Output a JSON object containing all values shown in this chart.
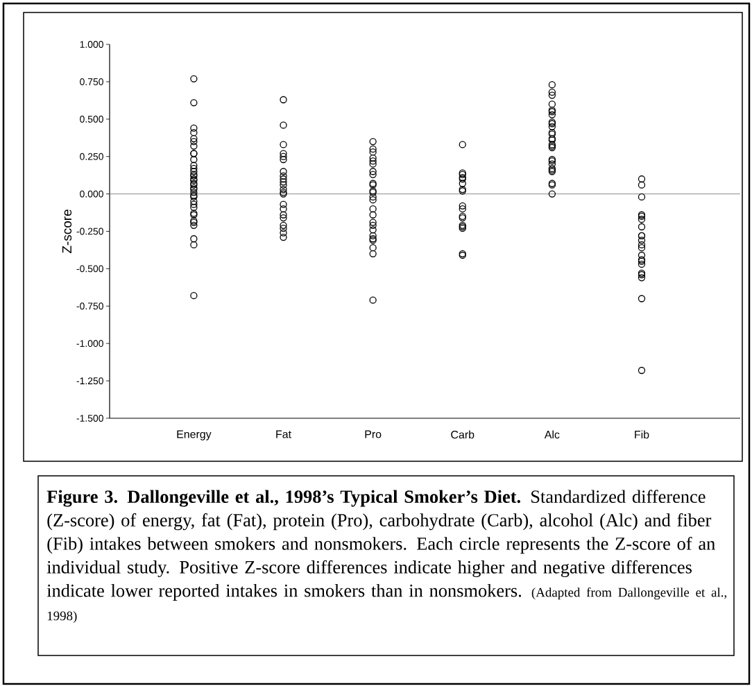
{
  "chart_data": {
    "type": "scatter",
    "ylabel": "Z-score",
    "categories": [
      "Energy",
      "Fat",
      "Pro",
      "Carb",
      "Alc",
      "Fib"
    ],
    "ylim": [
      -1.5,
      1.0
    ],
    "yticks": [
      {
        "value": -1.5,
        "label": "-1.500"
      },
      {
        "value": -1.25,
        "label": "-1.250"
      },
      {
        "value": -1.0,
        "label": "-1.000"
      },
      {
        "value": -0.75,
        "label": "-0.750"
      },
      {
        "value": -0.5,
        "label": "-0.500"
      },
      {
        "value": -0.25,
        "label": "-0.250"
      },
      {
        "value": 0,
        "label": "0.000"
      },
      {
        "value": 0.25,
        "label": "0.250"
      },
      {
        "value": 0.5,
        "label": "0.500"
      },
      {
        "value": 0.75,
        "label": "0.750"
      },
      {
        "value": 1.0,
        "label": "1.000"
      }
    ],
    "marker": "circle",
    "grid": false,
    "ref_lines": [
      {
        "axis": "y",
        "value": 0,
        "color": "#808080"
      }
    ],
    "series": [
      {
        "color": "#000000",
        "x": [
          "Energy",
          "Energy",
          "Energy",
          "Energy",
          "Energy",
          "Energy",
          "Energy",
          "Energy",
          "Energy",
          "Energy",
          "Energy",
          "Energy",
          "Energy",
          "Energy",
          "Energy",
          "Energy",
          "Energy",
          "Energy",
          "Energy",
          "Energy",
          "Energy",
          "Energy",
          "Energy",
          "Energy",
          "Energy",
          "Energy",
          "Energy",
          "Energy",
          "Energy",
          "Energy",
          "Energy",
          "Energy",
          "Energy",
          "Energy",
          "Energy"
        ],
        "values": [
          0.77,
          0.61,
          0.44,
          0.41,
          0.37,
          0.35,
          0.32,
          0.27,
          0.27,
          0.23,
          0.19,
          0.17,
          0.15,
          0.13,
          0.12,
          0.1,
          0.09,
          0.07,
          0.06,
          0.04,
          0.03,
          0.01,
          -0.01,
          -0.02,
          -0.05,
          -0.07,
          -0.09,
          -0.13,
          -0.14,
          -0.18,
          -0.19,
          -0.21,
          -0.3,
          -0.34,
          -0.68
        ]
      },
      {
        "color": "#000000",
        "x": [
          "Fat",
          "Fat",
          "Fat",
          "Fat",
          "Fat",
          "Fat",
          "Fat",
          "Fat",
          "Fat",
          "Fat",
          "Fat",
          "Fat",
          "Fat",
          "Fat",
          "Fat",
          "Fat",
          "Fat",
          "Fat",
          "Fat",
          "Fat",
          "Fat",
          "Fat"
        ],
        "values": [
          0.63,
          0.46,
          0.33,
          0.27,
          0.25,
          0.23,
          0.15,
          0.12,
          0.1,
          0.08,
          0.06,
          0.03,
          0.01,
          0.0,
          -0.07,
          -0.1,
          -0.14,
          -0.16,
          -0.21,
          -0.23,
          -0.26,
          -0.29
        ]
      },
      {
        "color": "#000000",
        "x": [
          "Pro",
          "Pro",
          "Pro",
          "Pro",
          "Pro",
          "Pro",
          "Pro",
          "Pro",
          "Pro",
          "Pro",
          "Pro",
          "Pro",
          "Pro",
          "Pro",
          "Pro",
          "Pro",
          "Pro",
          "Pro",
          "Pro",
          "Pro",
          "Pro",
          "Pro",
          "Pro",
          "Pro",
          "Pro"
        ],
        "values": [
          0.35,
          0.3,
          0.28,
          0.24,
          0.22,
          0.2,
          0.15,
          0.13,
          0.07,
          0.06,
          0.02,
          0.01,
          -0.02,
          -0.04,
          -0.1,
          -0.14,
          -0.19,
          -0.21,
          -0.24,
          -0.28,
          -0.3,
          -0.31,
          -0.36,
          -0.4,
          -0.71
        ]
      },
      {
        "color": "#000000",
        "x": [
          "Carb",
          "Carb",
          "Carb",
          "Carb",
          "Carb",
          "Carb",
          "Carb",
          "Carb",
          "Carb",
          "Carb",
          "Carb",
          "Carb",
          "Carb",
          "Carb",
          "Carb",
          "Carb",
          "Carb"
        ],
        "values": [
          0.33,
          0.14,
          0.13,
          0.11,
          0.1,
          0.07,
          0.03,
          0.02,
          -0.08,
          -0.1,
          -0.15,
          -0.16,
          -0.21,
          -0.22,
          -0.23,
          -0.4,
          -0.41
        ]
      },
      {
        "color": "#000000",
        "x": [
          "Alc",
          "Alc",
          "Alc",
          "Alc",
          "Alc",
          "Alc",
          "Alc",
          "Alc",
          "Alc",
          "Alc",
          "Alc",
          "Alc",
          "Alc",
          "Alc",
          "Alc",
          "Alc",
          "Alc",
          "Alc",
          "Alc",
          "Alc",
          "Alc",
          "Alc",
          "Alc",
          "Alc",
          "Alc",
          "Alc"
        ],
        "values": [
          0.73,
          0.68,
          0.66,
          0.6,
          0.56,
          0.55,
          0.53,
          0.48,
          0.47,
          0.45,
          0.41,
          0.4,
          0.37,
          0.36,
          0.33,
          0.32,
          0.31,
          0.23,
          0.22,
          0.2,
          0.17,
          0.16,
          0.15,
          0.07,
          0.06,
          0.0
        ]
      },
      {
        "color": "#000000",
        "x": [
          "Fib",
          "Fib",
          "Fib",
          "Fib",
          "Fib",
          "Fib",
          "Fib",
          "Fib",
          "Fib",
          "Fib",
          "Fib",
          "Fib",
          "Fib",
          "Fib",
          "Fib",
          "Fib",
          "Fib",
          "Fib",
          "Fib",
          "Fib",
          "Fib"
        ],
        "values": [
          0.1,
          0.06,
          -0.02,
          -0.14,
          -0.15,
          -0.17,
          -0.22,
          -0.28,
          -0.28,
          -0.31,
          -0.34,
          -0.36,
          -0.41,
          -0.44,
          -0.45,
          -0.47,
          -0.53,
          -0.54,
          -0.56,
          -0.7,
          -1.18
        ]
      }
    ],
    "annotations": [
      "**Figure 3. Dallongeville et al., 1998’s Typical Smoker’s Diet.**  Standardized difference (Z-score) of energy, fat (Fat), protein (Pro), carbohydrate (Carb), alcohol (Alc) and fiber (Fib) intakes between smokers and nonsmokers. Each circle represents the Z-score of an individual study. Positive Z-score differences indicate higher and negative differences indicate lower reported intakes in smokers than in nonsmokers.",
      "(Adapted from Dallongeville et al., 1998)"
    ]
  }
}
